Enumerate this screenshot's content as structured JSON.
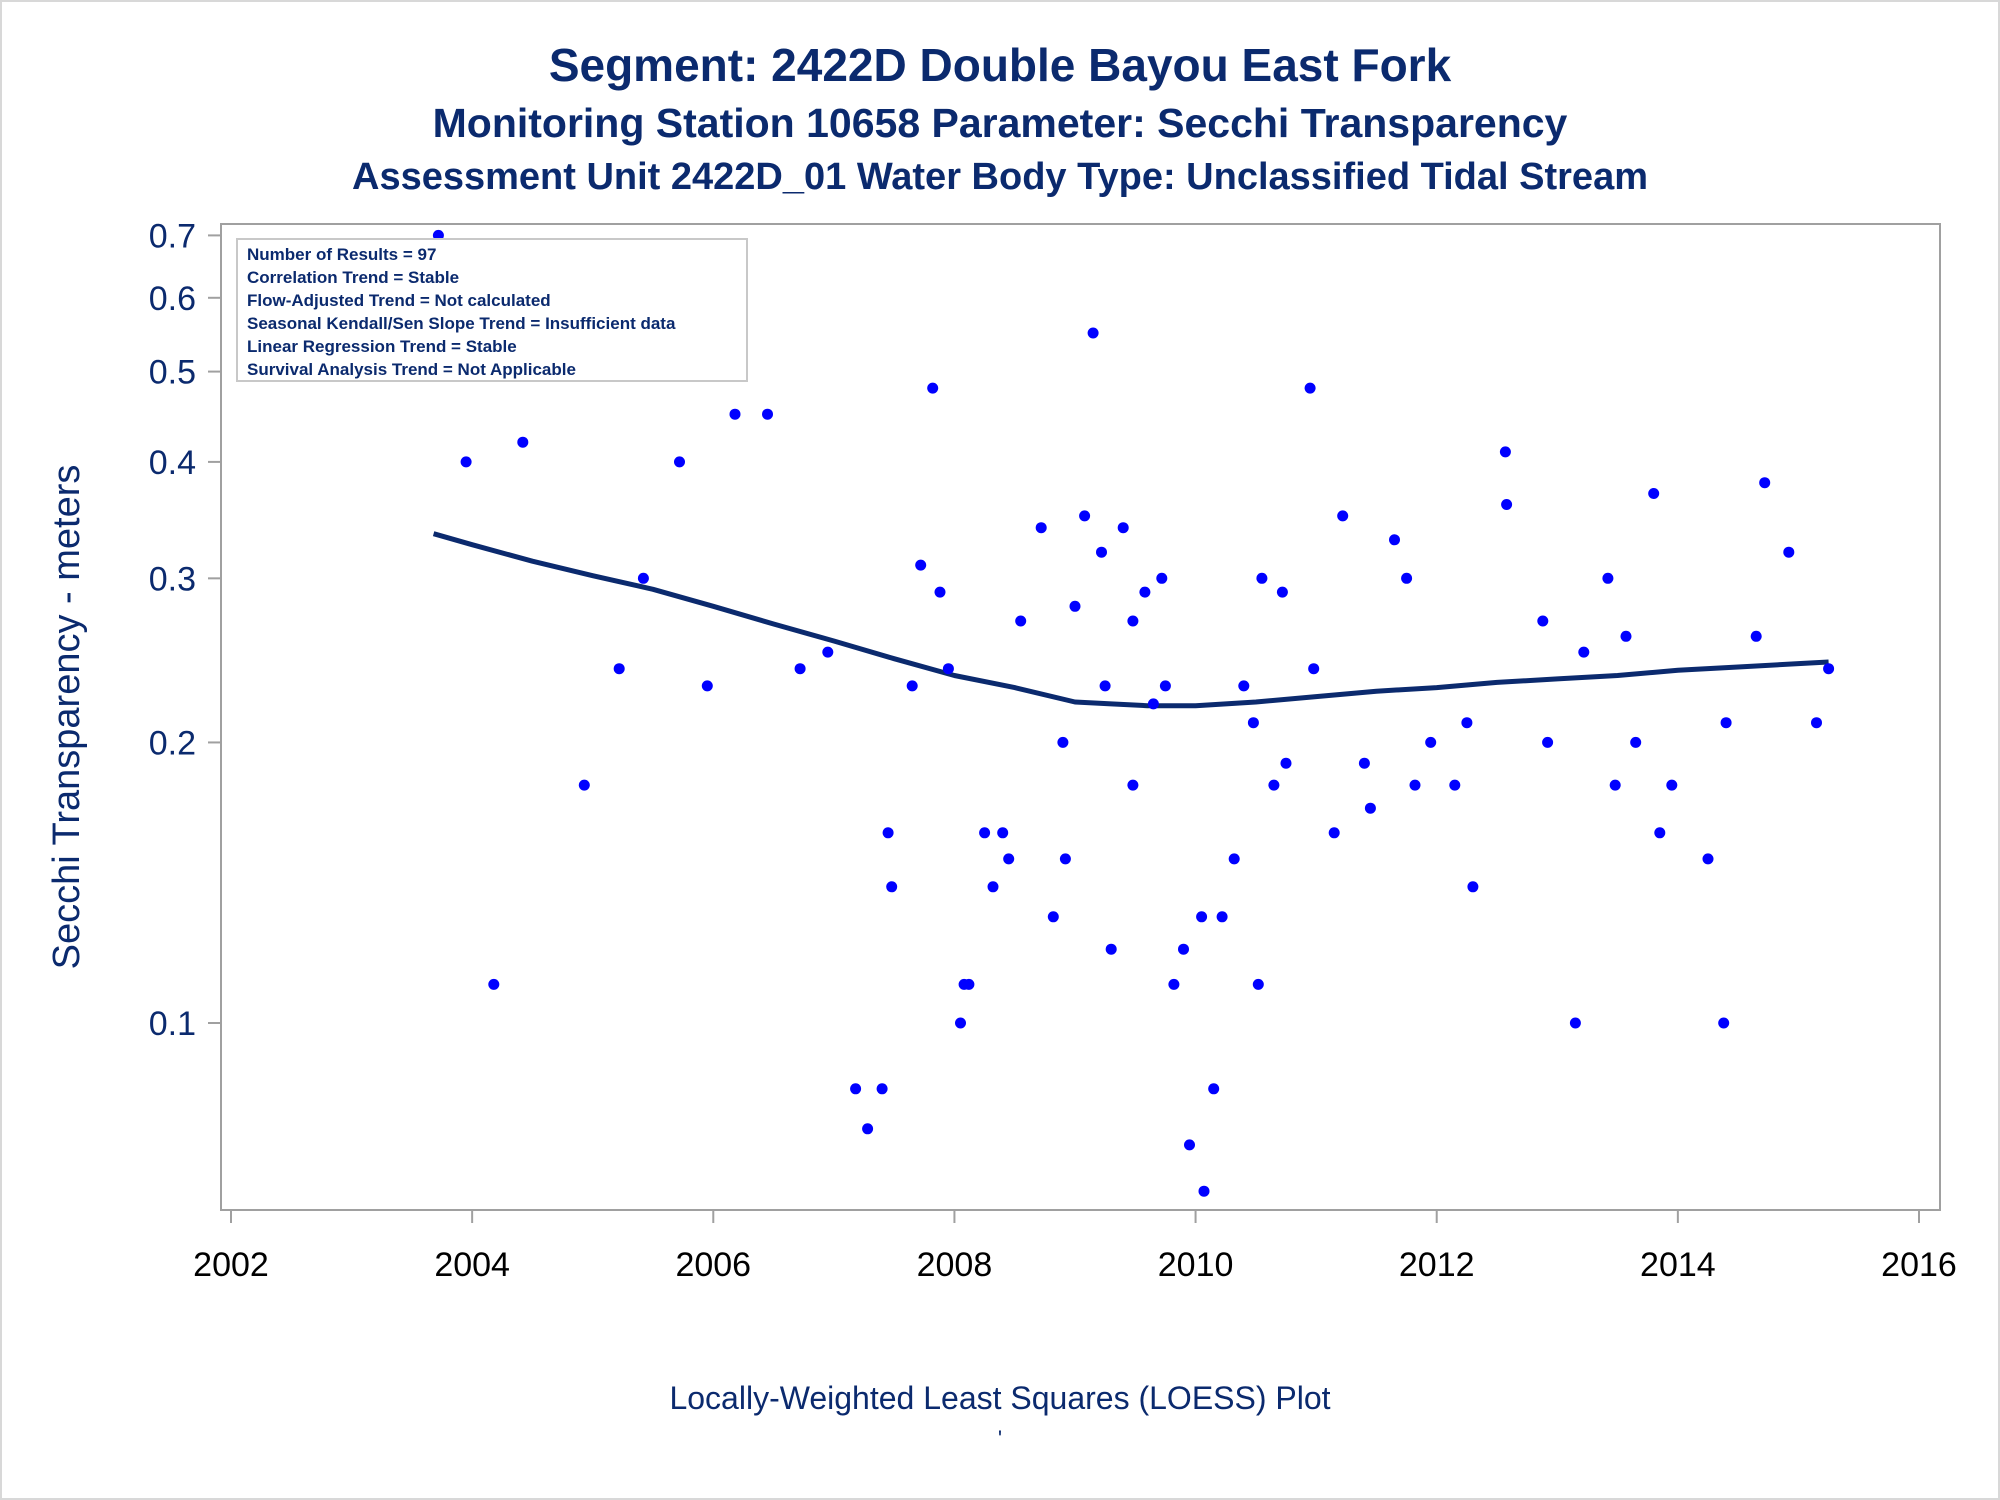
{
  "titles": {
    "line1": "Segment: 2422D  Double Bayou East Fork",
    "line2": "Monitoring Station 10658 Parameter: Secchi Transparency",
    "line3": "Assessment Unit 2422D_01    Water Body Type: Unclassified Tidal Stream"
  },
  "footer": {
    "caption": "Locally-Weighted Least Squares (LOESS) Plot",
    "mark": "'"
  },
  "colors": {
    "text": "#0b2a6e",
    "points": "#0000ff",
    "loess": "#0b2a6e",
    "axis": "#a0a0a0"
  },
  "legend": {
    "placement": "top-left",
    "lines": [
      "Number of Results = 97",
      "Correlation Trend = Stable",
      "Flow-Adjusted Trend = Not calculated",
      "Seasonal Kendall/Sen Slope Trend = Insufficient data",
      "Linear Regression Trend = Stable",
      "Survival Analysis Trend = Not Applicable"
    ]
  },
  "chart_data": {
    "type": "scatter",
    "title": "Segment: 2422D  Double Bayou East Fork",
    "xlabel": "",
    "ylabel": "Secchi Transparency - meters",
    "xlim": [
      2002,
      2016
    ],
    "ylim": [
      0.063,
      0.72
    ],
    "y_scale": "log",
    "grid": false,
    "x_ticks": [
      2002,
      2004,
      2006,
      2008,
      2010,
      2012,
      2014,
      2016
    ],
    "y_ticks": [
      0.1,
      0.2,
      0.3,
      0.4,
      0.5,
      0.6,
      0.7
    ],
    "points": [
      [
        2003.72,
        0.7
      ],
      [
        2003.95,
        0.4
      ],
      [
        2004.18,
        0.11
      ],
      [
        2004.42,
        0.42
      ],
      [
        2004.93,
        0.18
      ],
      [
        2005.22,
        0.24
      ],
      [
        2005.42,
        0.3
      ],
      [
        2005.72,
        0.4
      ],
      [
        2005.95,
        0.23
      ],
      [
        2006.18,
        0.45
      ],
      [
        2006.45,
        0.45
      ],
      [
        2006.72,
        0.24
      ],
      [
        2006.95,
        0.25
      ],
      [
        2007.18,
        0.085
      ],
      [
        2007.28,
        0.077
      ],
      [
        2007.4,
        0.085
      ],
      [
        2007.45,
        0.16
      ],
      [
        2007.48,
        0.14
      ],
      [
        2007.65,
        0.23
      ],
      [
        2007.72,
        0.31
      ],
      [
        2007.82,
        0.48
      ],
      [
        2007.88,
        0.29
      ],
      [
        2007.95,
        0.24
      ],
      [
        2008.05,
        0.1
      ],
      [
        2008.08,
        0.11
      ],
      [
        2008.12,
        0.11
      ],
      [
        2008.25,
        0.16
      ],
      [
        2008.32,
        0.14
      ],
      [
        2008.4,
        0.16
      ],
      [
        2008.45,
        0.15
      ],
      [
        2008.55,
        0.27
      ],
      [
        2008.72,
        0.34
      ],
      [
        2008.82,
        0.13
      ],
      [
        2008.9,
        0.2
      ],
      [
        2008.92,
        0.15
      ],
      [
        2009.0,
        0.28
      ],
      [
        2009.08,
        0.35
      ],
      [
        2009.15,
        0.55
      ],
      [
        2009.22,
        0.32
      ],
      [
        2009.25,
        0.23
      ],
      [
        2009.3,
        0.12
      ],
      [
        2009.4,
        0.34
      ],
      [
        2009.48,
        0.27
      ],
      [
        2009.48,
        0.18
      ],
      [
        2009.58,
        0.29
      ],
      [
        2009.65,
        0.22
      ],
      [
        2009.72,
        0.3
      ],
      [
        2009.75,
        0.23
      ],
      [
        2009.82,
        0.11
      ],
      [
        2009.9,
        0.12
      ],
      [
        2009.95,
        0.074
      ],
      [
        2010.05,
        0.13
      ],
      [
        2010.07,
        0.066
      ],
      [
        2010.15,
        0.085
      ],
      [
        2010.22,
        0.13
      ],
      [
        2010.32,
        0.15
      ],
      [
        2010.4,
        0.23
      ],
      [
        2010.48,
        0.21
      ],
      [
        2010.52,
        0.11
      ],
      [
        2010.55,
        0.3
      ],
      [
        2010.65,
        0.18
      ],
      [
        2010.72,
        0.29
      ],
      [
        2010.75,
        0.19
      ],
      [
        2010.95,
        0.48
      ],
      [
        2010.98,
        0.24
      ],
      [
        2011.15,
        0.16
      ],
      [
        2011.22,
        0.35
      ],
      [
        2011.4,
        0.19
      ],
      [
        2011.45,
        0.17
      ],
      [
        2011.65,
        0.33
      ],
      [
        2011.75,
        0.3
      ],
      [
        2011.82,
        0.18
      ],
      [
        2011.95,
        0.2
      ],
      [
        2012.15,
        0.18
      ],
      [
        2012.25,
        0.21
      ],
      [
        2012.3,
        0.14
      ],
      [
        2012.57,
        0.41
      ],
      [
        2012.58,
        0.36
      ],
      [
        2012.88,
        0.27
      ],
      [
        2012.92,
        0.2
      ],
      [
        2013.15,
        0.1
      ],
      [
        2013.22,
        0.25
      ],
      [
        2013.42,
        0.3
      ],
      [
        2013.48,
        0.18
      ],
      [
        2013.57,
        0.26
      ],
      [
        2013.65,
        0.2
      ],
      [
        2013.8,
        0.37
      ],
      [
        2013.85,
        0.16
      ],
      [
        2013.95,
        0.18
      ],
      [
        2014.25,
        0.15
      ],
      [
        2014.38,
        0.1
      ],
      [
        2014.4,
        0.21
      ],
      [
        2014.65,
        0.26
      ],
      [
        2014.72,
        0.38
      ],
      [
        2014.92,
        0.32
      ],
      [
        2015.15,
        0.21
      ],
      [
        2015.25,
        0.24
      ]
    ],
    "loess": [
      [
        2003.68,
        0.335
      ],
      [
        2004.0,
        0.326
      ],
      [
        2004.5,
        0.313
      ],
      [
        2005.0,
        0.302
      ],
      [
        2005.5,
        0.292
      ],
      [
        2006.0,
        0.28
      ],
      [
        2006.5,
        0.268
      ],
      [
        2007.0,
        0.257
      ],
      [
        2007.5,
        0.246
      ],
      [
        2008.0,
        0.236
      ],
      [
        2008.5,
        0.229
      ],
      [
        2009.0,
        0.221
      ],
      [
        2009.3,
        0.22
      ],
      [
        2009.6,
        0.219
      ],
      [
        2010.0,
        0.219
      ],
      [
        2010.5,
        0.221
      ],
      [
        2011.0,
        0.224
      ],
      [
        2011.5,
        0.227
      ],
      [
        2012.0,
        0.229
      ],
      [
        2012.5,
        0.232
      ],
      [
        2013.0,
        0.234
      ],
      [
        2013.5,
        0.236
      ],
      [
        2014.0,
        0.239
      ],
      [
        2014.5,
        0.241
      ],
      [
        2015.0,
        0.243
      ],
      [
        2015.25,
        0.244
      ]
    ]
  }
}
